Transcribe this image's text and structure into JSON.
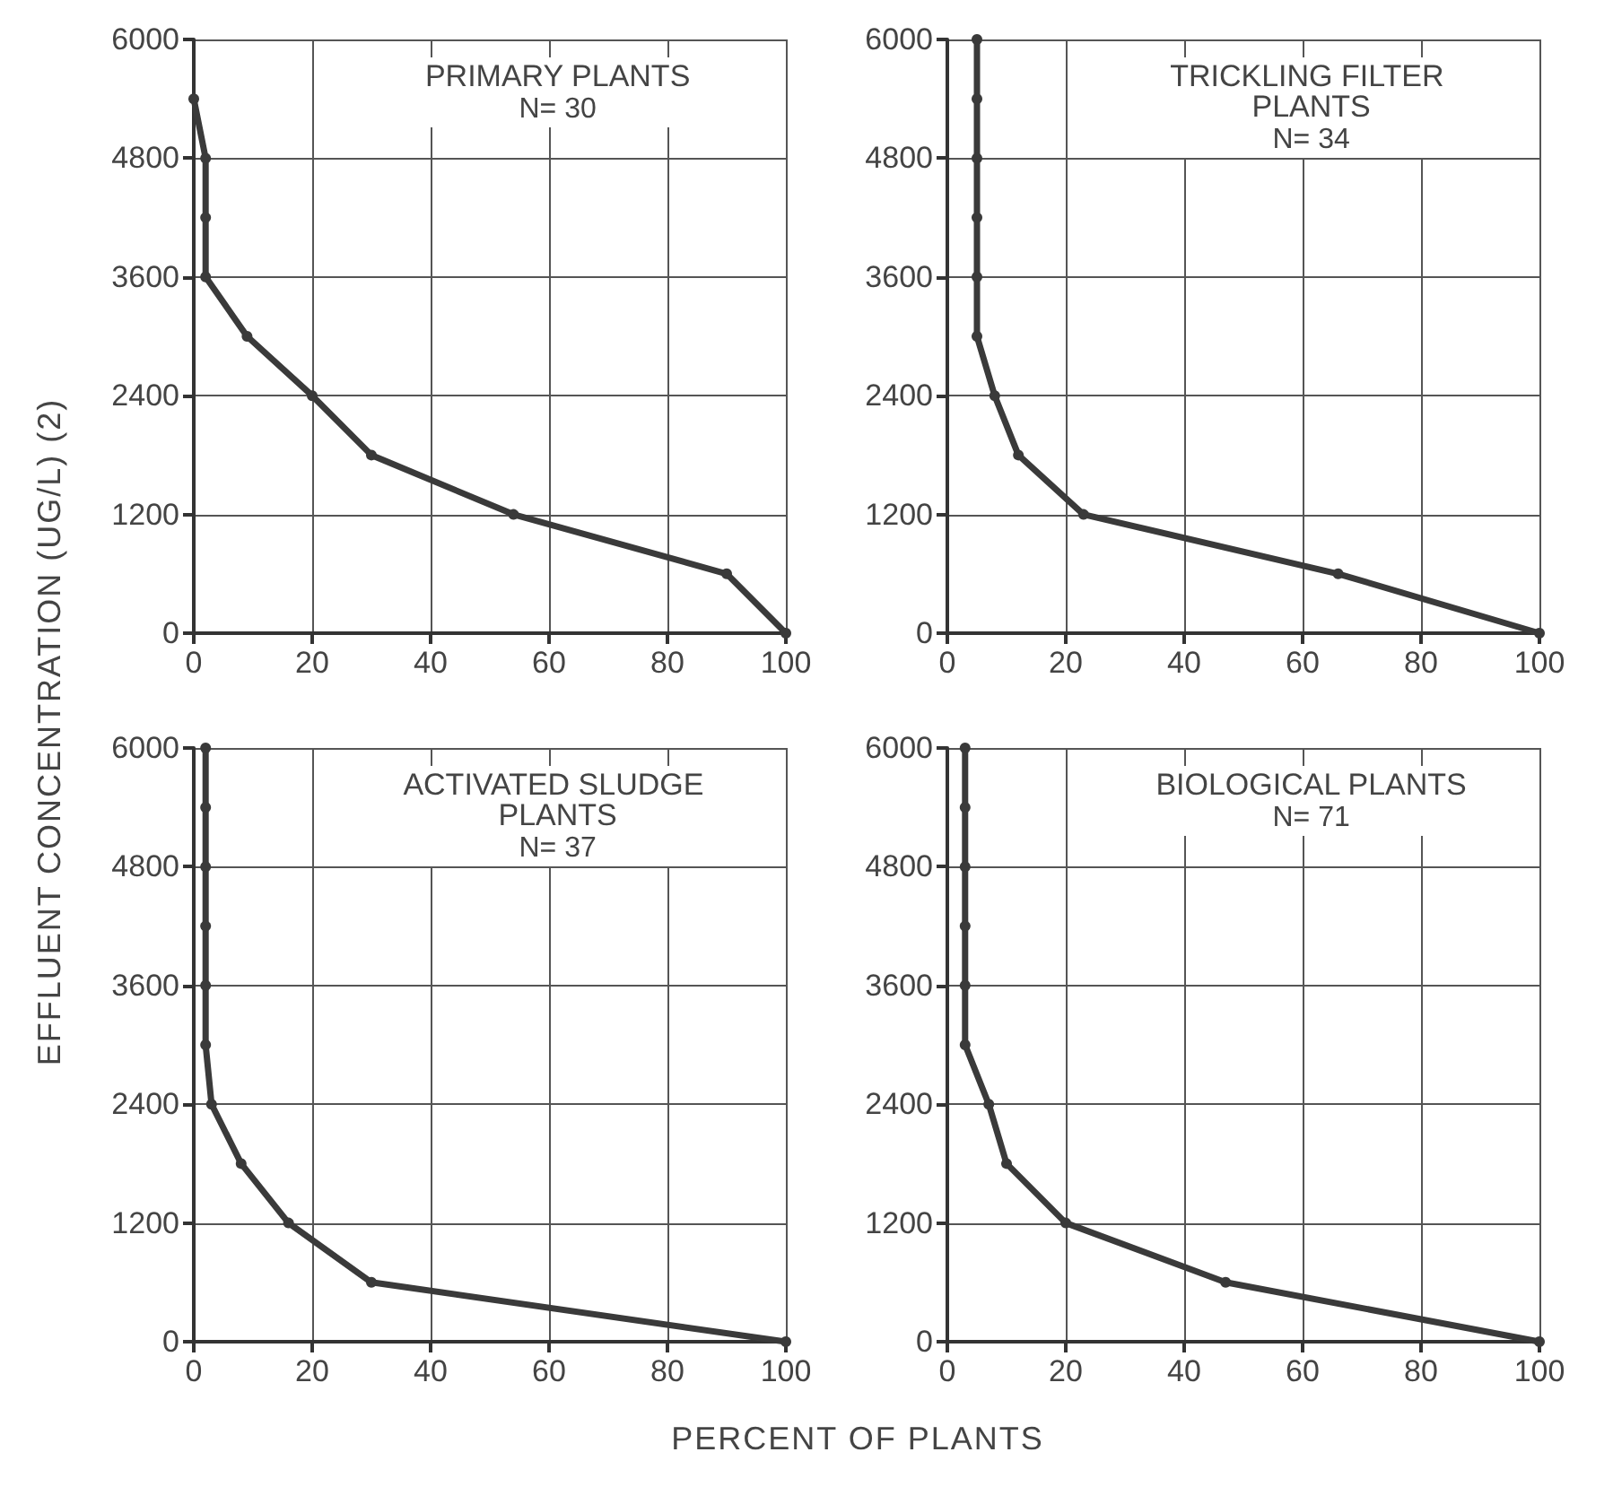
{
  "chart_data": [
    {
      "type": "line",
      "title": "PRIMARY PLANTS",
      "subtitle": "N= 30",
      "color": "#3a3a3a",
      "marker": "circle",
      "line_style": "solid",
      "grid": true,
      "x": [
        0,
        2,
        2,
        2,
        9,
        20,
        30,
        54,
        90,
        100
      ],
      "values": [
        5400,
        4800,
        4200,
        3600,
        3000,
        2400,
        1800,
        1200,
        600,
        0
      ],
      "xlim": [
        0,
        100
      ],
      "xticks": [
        0,
        20,
        40,
        60,
        80,
        100
      ],
      "ylim": [
        0,
        6000
      ],
      "yticks": [
        0,
        1200,
        2400,
        3600,
        4800,
        6000
      ]
    },
    {
      "type": "line",
      "title": "TRICKLING FILTER PLANTS",
      "subtitle": "N= 34",
      "color": "#3a3a3a",
      "marker": "circle",
      "line_style": "solid",
      "grid": true,
      "x": [
        5,
        5,
        5,
        5,
        5,
        5,
        8,
        12,
        23,
        66,
        100
      ],
      "values": [
        6000,
        5400,
        4800,
        4200,
        3600,
        3000,
        2400,
        1800,
        1200,
        600,
        0
      ],
      "xlim": [
        0,
        100
      ],
      "xticks": [
        0,
        20,
        40,
        60,
        80,
        100
      ],
      "ylim": [
        0,
        6000
      ],
      "yticks": [
        0,
        1200,
        2400,
        3600,
        4800,
        6000
      ]
    },
    {
      "type": "line",
      "title": "ACTIVATED SLUDGE PLANTS",
      "subtitle": "N= 37",
      "color": "#3a3a3a",
      "marker": "circle",
      "line_style": "solid",
      "grid": true,
      "ylabel": "EFFLUENT CONCENTRATION (UG/L) (2)",
      "xlabel": "PERCENT OF PLANTS",
      "x": [
        2,
        2,
        2,
        2,
        2,
        2,
        3,
        8,
        16,
        30,
        100
      ],
      "values": [
        6000,
        5400,
        4800,
        4200,
        3600,
        3000,
        2400,
        1800,
        1200,
        600,
        0
      ],
      "xlim": [
        0,
        100
      ],
      "xticks": [
        0,
        20,
        40,
        60,
        80,
        100
      ],
      "ylim": [
        0,
        6000
      ],
      "yticks": [
        0,
        1200,
        2400,
        3600,
        4800,
        6000
      ]
    },
    {
      "type": "line",
      "title": "BIOLOGICAL PLANTS",
      "subtitle": "N= 71",
      "color": "#3a3a3a",
      "marker": "circle",
      "line_style": "solid",
      "grid": true,
      "x": [
        3,
        3,
        3,
        3,
        3,
        3,
        7,
        10,
        20,
        47,
        100
      ],
      "values": [
        6000,
        5400,
        4800,
        4200,
        3600,
        3000,
        2400,
        1800,
        1200,
        600,
        0
      ],
      "xlim": [
        0,
        100
      ],
      "xticks": [
        0,
        20,
        40,
        60,
        80,
        100
      ],
      "ylim": [
        0,
        6000
      ],
      "yticks": [
        0,
        1200,
        2400,
        3600,
        4800,
        6000
      ]
    }
  ]
}
